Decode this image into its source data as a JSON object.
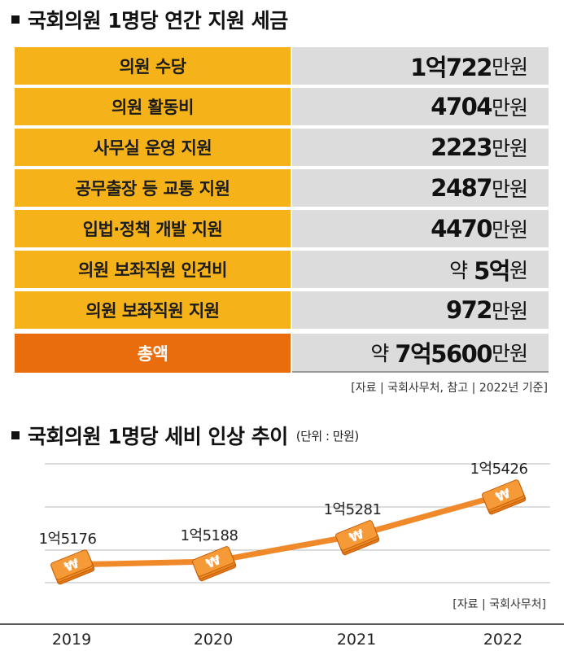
{
  "table": {
    "title": "국회의원 1명당 연간 지원 세금",
    "rows": [
      {
        "label": "의원 수당",
        "prefix": "",
        "amount": "1억722",
        "unit": "만원"
      },
      {
        "label": "의원 활동비",
        "prefix": "",
        "amount": "4704",
        "unit": "만원"
      },
      {
        "label": "사무실 운영 지원",
        "prefix": "",
        "amount": "2223",
        "unit": "만원"
      },
      {
        "label": "공무출장 등 교통 지원",
        "prefix": "",
        "amount": "2487",
        "unit": "만원"
      },
      {
        "label": "입법·정책 개발 지원",
        "prefix": "",
        "amount": "4470",
        "unit": "만원"
      },
      {
        "label": "의원 보좌직원 인건비",
        "prefix": "약",
        "amount": "5억",
        "unit": "원"
      },
      {
        "label": "의원 보좌직원 지원",
        "prefix": "",
        "amount": "972",
        "unit": "만원"
      }
    ],
    "total": {
      "label": "총액",
      "prefix": "약",
      "amount": "7억5600",
      "unit": "만원"
    },
    "source": "[자료 | 국회사무처, 참고 | 2022년 기준]",
    "colors": {
      "label_bg": "#f6b319",
      "total_bg": "#e96d0d",
      "value_bg": "#dcdcdc"
    }
  },
  "chart_data": {
    "type": "line",
    "title": "국회의원 1명당 세비 인상 추이",
    "unit_note": "(단위 : 만원)",
    "categories": [
      "2019",
      "2020",
      "2021",
      "2022"
    ],
    "values": [
      15176,
      15188,
      15281,
      15426
    ],
    "data_labels": [
      "1억5176",
      "1억5188",
      "1억5281",
      "1억5426"
    ],
    "marker_icon": "won-bill-icon",
    "line_color": "#f0892a",
    "grid": true,
    "source": "[자료 | 국회사무처]"
  }
}
